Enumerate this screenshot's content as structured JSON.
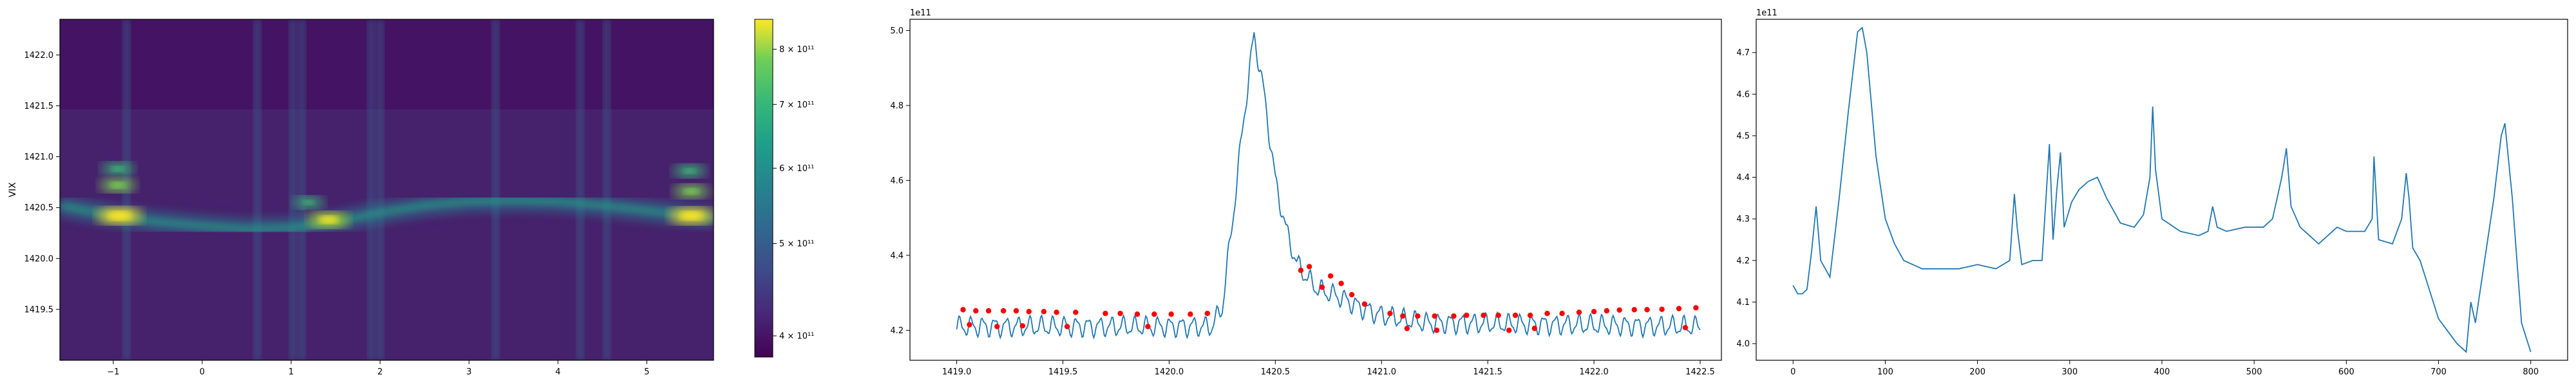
{
  "chart_data": [
    {
      "type": "heatmap",
      "title": "",
      "xlabel": "",
      "ylabel": "VIX",
      "xlim": [
        -1.6,
        5.75
      ],
      "ylim": [
        1419.0,
        1422.35
      ],
      "x_ticks": [
        "−1",
        "0",
        "1",
        "2",
        "3",
        "4",
        "5"
      ],
      "y_ticks": [
        "1419.5",
        "1420.0",
        "1420.5",
        "1421.0",
        "1421.5",
        "1422.0"
      ],
      "colorbar": {
        "colormap": "viridis",
        "scale": "log",
        "range": [
          380000000000.0,
          860000000000.0
        ],
        "ticks": [
          "4 × 10¹¹",
          "5 × 10¹¹",
          "6 × 10¹¹",
          "7 × 10¹¹",
          "8 × 10¹¹"
        ]
      },
      "ridge": {
        "x": [
          -1.6,
          -1.3,
          -1.0,
          -0.5,
          0.0,
          0.5,
          1.0,
          1.5,
          2.0,
          2.5,
          3.0,
          3.5,
          4.0,
          4.5,
          5.0,
          5.5,
          5.75
        ],
        "y": [
          1420.52,
          1420.47,
          1420.42,
          1420.36,
          1420.32,
          1420.29,
          1420.3,
          1420.36,
          1420.45,
          1420.52,
          1420.56,
          1420.57,
          1420.56,
          1420.52,
          1420.47,
          1420.42,
          1420.4
        ]
      },
      "hotspots": [
        {
          "x": -0.93,
          "y": 1420.42,
          "level": 1.0
        },
        {
          "x": -0.95,
          "y": 1420.72,
          "level": 0.6
        },
        {
          "x": -0.95,
          "y": 1420.88,
          "level": 0.45
        },
        {
          "x": 1.42,
          "y": 1420.38,
          "level": 0.8
        },
        {
          "x": 1.2,
          "y": 1420.55,
          "level": 0.35
        },
        {
          "x": 5.5,
          "y": 1420.42,
          "level": 0.95
        },
        {
          "x": 5.5,
          "y": 1420.66,
          "level": 0.55
        },
        {
          "x": 5.48,
          "y": 1420.86,
          "level": 0.45
        }
      ],
      "vertical_bands": [
        -0.85,
        0.62,
        1.02,
        1.12,
        1.9,
        2.0,
        3.3,
        4.25,
        4.55
      ]
    },
    {
      "type": "line",
      "title": "",
      "xlabel": "",
      "ylabel": "",
      "offset_text": "1e11",
      "xlim": [
        1418.78,
        1422.6
      ],
      "ylim": [
        4.12,
        5.03
      ],
      "x_ticks": [
        "1419.0",
        "1419.5",
        "1420.0",
        "1420.5",
        "1421.0",
        "1421.5",
        "1422.0",
        "1422.5"
      ],
      "y_ticks": [
        "4.2",
        "4.4",
        "4.6",
        "4.8",
        "5.0"
      ],
      "curve_anchors": [
        [
          1420.2,
          4.21
        ],
        [
          1420.25,
          4.26
        ],
        [
          1420.3,
          4.5
        ],
        [
          1420.35,
          4.76
        ],
        [
          1420.4,
          4.99
        ],
        [
          1420.45,
          4.82
        ],
        [
          1420.5,
          4.6
        ],
        [
          1420.55,
          4.47
        ],
        [
          1420.6,
          4.38
        ],
        [
          1420.65,
          4.34
        ],
        [
          1420.7,
          4.31
        ],
        [
          1420.8,
          4.29
        ],
        [
          1420.9,
          4.26
        ],
        [
          1421.0,
          4.24
        ],
        [
          1421.2,
          4.22
        ],
        [
          1422.5,
          4.21
        ]
      ],
      "baseline": 4.21,
      "ripple_period": 0.055,
      "x_range": [
        1419.0,
        1422.5
      ],
      "peak_markers": {
        "color": "#ff0000",
        "points": [
          [
            1419.03,
            4.255
          ],
          [
            1419.09,
            4.252
          ],
          [
            1419.15,
            4.252
          ],
          [
            1419.22,
            4.252
          ],
          [
            1419.28,
            4.252
          ],
          [
            1419.34,
            4.25
          ],
          [
            1419.41,
            4.25
          ],
          [
            1419.47,
            4.248
          ],
          [
            1419.56,
            4.248
          ],
          [
            1419.7,
            4.245
          ],
          [
            1419.77,
            4.245
          ],
          [
            1419.85,
            4.243
          ],
          [
            1419.93,
            4.243
          ],
          [
            1420.01,
            4.243
          ],
          [
            1420.1,
            4.243
          ],
          [
            1420.18,
            4.245
          ],
          [
            1420.62,
            4.36
          ],
          [
            1420.66,
            4.37
          ],
          [
            1420.72,
            4.315
          ],
          [
            1420.76,
            4.345
          ],
          [
            1420.81,
            4.325
          ],
          [
            1420.86,
            4.295
          ],
          [
            1420.92,
            4.27
          ],
          [
            1421.04,
            4.245
          ],
          [
            1421.1,
            4.238
          ],
          [
            1421.17,
            4.238
          ],
          [
            1421.25,
            4.238
          ],
          [
            1421.34,
            4.238
          ],
          [
            1421.4,
            4.24
          ],
          [
            1421.48,
            4.24
          ],
          [
            1421.55,
            4.24
          ],
          [
            1421.63,
            4.24
          ],
          [
            1421.7,
            4.24
          ],
          [
            1421.78,
            4.245
          ],
          [
            1421.85,
            4.245
          ],
          [
            1421.93,
            4.248
          ],
          [
            1422.0,
            4.25
          ],
          [
            1422.06,
            4.252
          ],
          [
            1422.12,
            4.254
          ],
          [
            1422.19,
            4.255
          ],
          [
            1422.25,
            4.255
          ],
          [
            1422.32,
            4.256
          ],
          [
            1422.4,
            4.258
          ],
          [
            1422.48,
            4.26
          ],
          [
            1419.06,
            4.215
          ],
          [
            1419.19,
            4.21
          ],
          [
            1419.31,
            4.212
          ],
          [
            1419.52,
            4.21
          ],
          [
            1419.9,
            4.21
          ],
          [
            1421.12,
            4.205
          ],
          [
            1421.26,
            4.2
          ],
          [
            1421.6,
            4.2
          ],
          [
            1421.72,
            4.205
          ],
          [
            1422.43,
            4.207
          ]
        ]
      }
    },
    {
      "type": "line",
      "title": "",
      "xlabel": "",
      "ylabel": "",
      "offset_text": "1e11",
      "xlim": [
        -40,
        840
      ],
      "ylim": [
        3.96,
        4.78
      ],
      "x_ticks": [
        "0",
        "100",
        "200",
        "300",
        "400",
        "500",
        "600",
        "700",
        "800"
      ],
      "y_ticks": [
        "4.0",
        "4.1",
        "4.2",
        "4.3",
        "4.4",
        "4.5",
        "4.6",
        "4.7"
      ],
      "x": [
        0,
        5,
        10,
        15,
        20,
        25,
        30,
        40,
        50,
        60,
        70,
        75,
        80,
        90,
        100,
        110,
        120,
        140,
        160,
        180,
        200,
        220,
        235,
        240,
        243,
        248,
        260,
        270,
        278,
        282,
        286,
        290,
        294,
        298,
        302,
        310,
        320,
        330,
        340,
        355,
        370,
        380,
        387,
        390,
        393,
        400,
        420,
        440,
        450,
        455,
        460,
        470,
        490,
        510,
        520,
        530,
        535,
        540,
        550,
        570,
        590,
        600,
        610,
        620,
        628,
        630,
        635,
        650,
        660,
        665,
        668,
        672,
        680,
        690,
        700,
        710,
        720,
        730,
        735,
        740,
        750,
        760,
        768,
        772,
        780,
        790,
        800
      ],
      "values": [
        4.14,
        4.12,
        4.12,
        4.13,
        4.22,
        4.33,
        4.2,
        4.16,
        4.35,
        4.56,
        4.75,
        4.76,
        4.7,
        4.45,
        4.3,
        4.24,
        4.2,
        4.18,
        4.18,
        4.18,
        4.19,
        4.18,
        4.2,
        4.36,
        4.28,
        4.19,
        4.2,
        4.2,
        4.48,
        4.25,
        4.37,
        4.46,
        4.28,
        4.31,
        4.34,
        4.37,
        4.39,
        4.4,
        4.35,
        4.29,
        4.28,
        4.31,
        4.4,
        4.57,
        4.42,
        4.3,
        4.27,
        4.26,
        4.27,
        4.33,
        4.28,
        4.27,
        4.28,
        4.28,
        4.3,
        4.4,
        4.47,
        4.33,
        4.28,
        4.24,
        4.28,
        4.27,
        4.27,
        4.27,
        4.3,
        4.45,
        4.25,
        4.24,
        4.3,
        4.41,
        4.35,
        4.23,
        4.2,
        4.13,
        4.06,
        4.03,
        4.0,
        3.98,
        4.1,
        4.05,
        4.2,
        4.35,
        4.5,
        4.53,
        4.35,
        4.05,
        3.98
      ]
    }
  ]
}
